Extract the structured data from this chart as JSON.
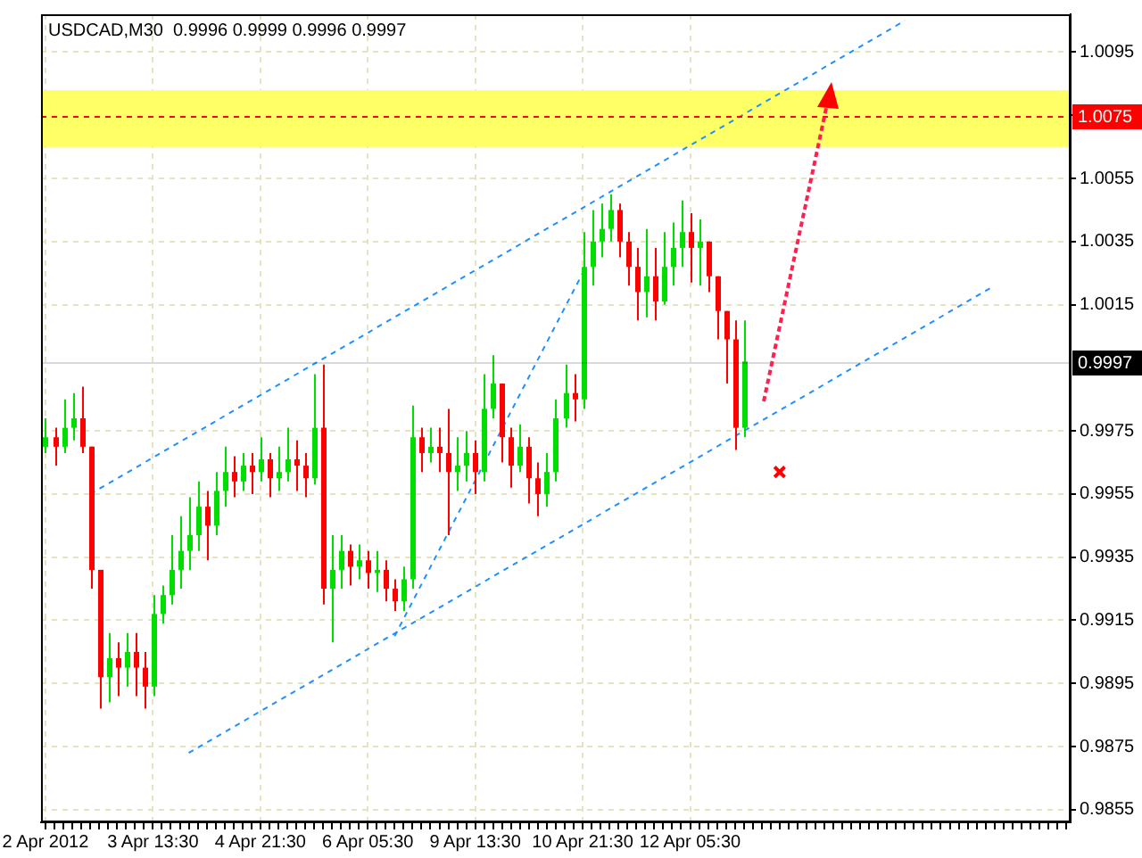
{
  "chart_data": {
    "type": "candlestick",
    "title": "USDCAD,M30  0.9996 0.9999 0.9996 0.9997",
    "categories": [
      "2 Apr 2012",
      null,
      null,
      null,
      null,
      null,
      null,
      null,
      null,
      null,
      null,
      null,
      "3 Apr 13:30",
      null,
      null,
      null,
      null,
      null,
      null,
      null,
      null,
      null,
      null,
      null,
      "4 Apr 21:30",
      null,
      null,
      null,
      null,
      null,
      null,
      null,
      null,
      null,
      null,
      null,
      "6 Apr 05:30",
      null,
      null,
      null,
      null,
      null,
      null,
      null,
      null,
      null,
      null,
      null,
      "9 Apr 13:30",
      null,
      null,
      null,
      null,
      null,
      null,
      null,
      null,
      null,
      null,
      null,
      "10 Apr 21:30",
      null,
      null,
      null,
      null,
      null,
      null,
      null,
      null,
      null,
      null,
      null,
      "12 Apr 05:30",
      null,
      null,
      null,
      null,
      null,
      null,
      null,
      null,
      null,
      null,
      null,
      null,
      null,
      null,
      null,
      null,
      null,
      null,
      null,
      null,
      null,
      null,
      null,
      null,
      null,
      null,
      null,
      null,
      null,
      null,
      null,
      null,
      null,
      null,
      null,
      null,
      null,
      null,
      null,
      null,
      null,
      null
    ],
    "ohlc": [
      [
        0.997,
        0.9979,
        0.9968,
        0.9973
      ],
      [
        0.9973,
        0.9976,
        0.9964,
        0.997
      ],
      [
        0.997,
        0.9985,
        0.9968,
        0.9976
      ],
      [
        0.9976,
        0.9987,
        0.9972,
        0.9979
      ],
      [
        0.9979,
        0.9989,
        0.9968,
        0.997
      ],
      [
        0.997,
        0.997,
        0.9925,
        0.9931
      ],
      [
        0.9931,
        0.9931,
        0.9887,
        0.9897
      ],
      [
        0.9897,
        0.9911,
        0.9889,
        0.9903
      ],
      [
        0.9903,
        0.9908,
        0.9891,
        0.99
      ],
      [
        0.99,
        0.9911,
        0.9894,
        0.9905
      ],
      [
        0.9905,
        0.9911,
        0.9891,
        0.99
      ],
      [
        0.99,
        0.9905,
        0.9887,
        0.9894
      ],
      [
        0.9894,
        0.9923,
        0.9891,
        0.9917
      ],
      [
        0.9917,
        0.9926,
        0.9914,
        0.9923
      ],
      [
        0.9923,
        0.9942,
        0.992,
        0.9931
      ],
      [
        0.9931,
        0.9948,
        0.9925,
        0.9937
      ],
      [
        0.9937,
        0.9954,
        0.9931,
        0.9942
      ],
      [
        0.9942,
        0.9959,
        0.9937,
        0.9951
      ],
      [
        0.9951,
        0.9956,
        0.9934,
        0.9945
      ],
      [
        0.9945,
        0.9962,
        0.9942,
        0.9956
      ],
      [
        0.9956,
        0.997,
        0.9951,
        0.9962
      ],
      [
        0.9962,
        0.9967,
        0.9954,
        0.9959
      ],
      [
        0.9959,
        0.9968,
        0.9956,
        0.9964
      ],
      [
        0.9964,
        0.9968,
        0.9955,
        0.9962
      ],
      [
        0.9962,
        0.9973,
        0.9959,
        0.9966
      ],
      [
        0.9966,
        0.9968,
        0.9954,
        0.996
      ],
      [
        0.996,
        0.997,
        0.9956,
        0.9962
      ],
      [
        0.9962,
        0.9976,
        0.9959,
        0.9966
      ],
      [
        0.9966,
        0.9972,
        0.9956,
        0.9964
      ],
      [
        0.9964,
        0.9968,
        0.9954,
        0.996
      ],
      [
        0.996,
        0.9993,
        0.9958,
        0.9976
      ],
      [
        0.9976,
        0.9996,
        0.992,
        0.9925
      ],
      [
        0.9925,
        0.9942,
        0.9908,
        0.9931
      ],
      [
        0.9931,
        0.9942,
        0.9925,
        0.9937
      ],
      [
        0.9937,
        0.9939,
        0.9926,
        0.9932
      ],
      [
        0.9932,
        0.9939,
        0.9928,
        0.9934
      ],
      [
        0.9934,
        0.9937,
        0.9925,
        0.993
      ],
      [
        0.993,
        0.9937,
        0.9924,
        0.9931
      ],
      [
        0.9931,
        0.9934,
        0.9921,
        0.9925
      ],
      [
        0.9925,
        0.9928,
        0.9918,
        0.9921
      ],
      [
        0.9921,
        0.9932,
        0.9918,
        0.9928
      ],
      [
        0.9928,
        0.9983,
        0.9925,
        0.9973
      ],
      [
        0.9973,
        0.9976,
        0.9962,
        0.9968
      ],
      [
        0.9968,
        0.9976,
        0.9965,
        0.997
      ],
      [
        0.997,
        0.9976,
        0.9962,
        0.9968
      ],
      [
        0.9968,
        0.9982,
        0.9942,
        0.9962
      ],
      [
        0.9962,
        0.9973,
        0.9956,
        0.9964
      ],
      [
        0.9964,
        0.9975,
        0.9959,
        0.9968
      ],
      [
        0.9968,
        0.9972,
        0.9955,
        0.9962
      ],
      [
        0.9962,
        0.9993,
        0.9959,
        0.9982
      ],
      [
        0.9982,
        0.9999,
        0.9979,
        0.999
      ],
      [
        0.999,
        0.999,
        0.9965,
        0.9973
      ],
      [
        0.9973,
        0.9976,
        0.9957,
        0.9964
      ],
      [
        0.9964,
        0.9977,
        0.9962,
        0.997
      ],
      [
        0.997,
        0.9973,
        0.9952,
        0.996
      ],
      [
        0.996,
        0.9965,
        0.9948,
        0.9955
      ],
      [
        0.9955,
        0.9968,
        0.9951,
        0.9962
      ],
      [
        0.9962,
        0.9985,
        0.9959,
        0.9979
      ],
      [
        0.9979,
        0.9996,
        0.9976,
        0.9987
      ],
      [
        0.9987,
        0.9993,
        0.9978,
        0.9985
      ],
      [
        0.9985,
        1.0038,
        0.9982,
        1.0027
      ],
      [
        1.0027,
        1.0045,
        1.0021,
        1.0035
      ],
      [
        1.0035,
        1.0047,
        1.003,
        1.0039
      ],
      [
        1.0039,
        1.005,
        1.0035,
        1.0045
      ],
      [
        1.0045,
        1.0047,
        1.003,
        1.0035
      ],
      [
        1.0035,
        1.0038,
        1.0021,
        1.0027
      ],
      [
        1.0027,
        1.0033,
        1.001,
        1.0019
      ],
      [
        1.0019,
        1.0039,
        1.0011,
        1.0024
      ],
      [
        1.0024,
        1.0033,
        1.001,
        1.0016
      ],
      [
        1.0016,
        1.0038,
        1.0015,
        1.0027
      ],
      [
        1.0027,
        1.0041,
        1.0021,
        1.0033
      ],
      [
        1.0033,
        1.0048,
        1.0027,
        1.0038
      ],
      [
        1.0038,
        1.0044,
        1.0022,
        1.0033
      ],
      [
        1.0033,
        1.0042,
        1.0021,
        1.0035
      ],
      [
        1.0035,
        1.0035,
        1.0019,
        1.0024
      ],
      [
        1.0024,
        1.0024,
        1.0004,
        1.0013
      ],
      [
        1.0013,
        1.0013,
        0.999,
        1.0004
      ],
      [
        1.0004,
        1.001,
        0.9969,
        0.9976
      ],
      [
        0.9976,
        1.001,
        0.9973,
        0.9997
      ],
      null,
      null,
      null,
      null,
      null,
      null,
      null,
      null,
      null,
      null,
      null,
      null,
      null,
      null,
      null,
      null,
      null,
      null,
      null,
      null,
      null,
      null,
      null,
      null,
      null,
      null,
      null,
      null,
      null,
      null,
      null,
      null,
      null,
      null,
      null,
      null
    ],
    "series": [
      {
        "type": "line",
        "color": "#1e90ff",
        "line_style": "dashed",
        "marker": "none",
        "values": [
          null,
          null,
          null,
          null,
          null,
          0.9955,
          null,
          null,
          null,
          null,
          null,
          null,
          null,
          null,
          null,
          null,
          null,
          null,
          null,
          null,
          null,
          null,
          null,
          null,
          null,
          null,
          null,
          null,
          null,
          null,
          null,
          null,
          null,
          null,
          null,
          null,
          null,
          null,
          null,
          null,
          null,
          null,
          null,
          null,
          null,
          null,
          null,
          null,
          null,
          null,
          null,
          null,
          null,
          null,
          null,
          null,
          null,
          null,
          null,
          null,
          null,
          null,
          null,
          null,
          null,
          null,
          null,
          null,
          null,
          null,
          null,
          null,
          null,
          null,
          null,
          null,
          null,
          null,
          null,
          null,
          null,
          null,
          null,
          null,
          null,
          null,
          null,
          null,
          null,
          null,
          null,
          null,
          null,
          null,
          null,
          null,
          1.0105,
          null,
          null,
          null,
          null,
          null,
          null,
          null,
          null,
          null,
          null,
          null,
          null,
          null,
          null,
          null,
          null,
          null,
          null
        ]
      },
      {
        "type": "line",
        "color": "#1e90ff",
        "line_style": "dashed",
        "marker": "none",
        "values": [
          null,
          null,
          null,
          null,
          null,
          null,
          null,
          null,
          null,
          null,
          null,
          null,
          null,
          null,
          null,
          null,
          0.9873,
          null,
          null,
          null,
          null,
          null,
          null,
          null,
          null,
          null,
          null,
          null,
          null,
          null,
          null,
          null,
          null,
          null,
          null,
          null,
          null,
          null,
          null,
          null,
          null,
          null,
          null,
          null,
          null,
          null,
          null,
          null,
          null,
          null,
          null,
          null,
          null,
          null,
          null,
          null,
          null,
          null,
          null,
          null,
          null,
          null,
          null,
          null,
          null,
          null,
          null,
          null,
          null,
          null,
          null,
          null,
          null,
          null,
          null,
          null,
          null,
          null,
          null,
          null,
          null,
          null,
          null,
          null,
          null,
          null,
          null,
          null,
          null,
          null,
          null,
          null,
          null,
          null,
          null,
          null,
          null,
          null,
          null,
          null,
          null,
          null,
          null,
          null,
          null,
          null,
          1.0021,
          null,
          null,
          null,
          null,
          null,
          null,
          null,
          null
        ]
      },
      {
        "type": "line",
        "color": "#1e90ff",
        "line_style": "dashed",
        "marker": "none",
        "values": [
          null,
          null,
          null,
          null,
          null,
          null,
          null,
          null,
          null,
          null,
          null,
          null,
          null,
          null,
          null,
          null,
          null,
          null,
          null,
          null,
          null,
          null,
          null,
          null,
          null,
          null,
          null,
          null,
          null,
          null,
          null,
          null,
          null,
          null,
          null,
          null,
          null,
          null,
          null,
          0.991,
          null,
          null,
          null,
          null,
          null,
          null,
          null,
          null,
          null,
          null,
          null,
          null,
          null,
          null,
          null,
          null,
          null,
          null,
          null,
          null,
          1.0025,
          null,
          null,
          null,
          null,
          null,
          null,
          null,
          null,
          null,
          null,
          null,
          null,
          null,
          null,
          null,
          null,
          null,
          null,
          null,
          null,
          null,
          null,
          null,
          null,
          null,
          null,
          null,
          null,
          null,
          null,
          null,
          null,
          null,
          null,
          null,
          null,
          null,
          null,
          null,
          null,
          null,
          null,
          null,
          null,
          null,
          null,
          null,
          null,
          null,
          null,
          null,
          null,
          null,
          null
        ]
      },
      {
        "type": "scatter",
        "color": "#ff0000",
        "marker": "cross",
        "values": [
          null,
          null,
          null,
          null,
          null,
          null,
          null,
          null,
          null,
          null,
          null,
          null,
          null,
          null,
          null,
          null,
          null,
          null,
          null,
          null,
          null,
          null,
          null,
          null,
          null,
          null,
          null,
          null,
          null,
          null,
          null,
          null,
          null,
          null,
          null,
          null,
          null,
          null,
          null,
          null,
          null,
          null,
          null,
          null,
          null,
          null,
          null,
          null,
          null,
          null,
          null,
          null,
          null,
          null,
          null,
          null,
          null,
          null,
          null,
          null,
          null,
          null,
          null,
          null,
          null,
          null,
          null,
          null,
          null,
          null,
          null,
          null,
          null,
          null,
          null,
          null,
          null,
          null,
          null,
          null,
          null,
          null,
          0.9962,
          null,
          null,
          null,
          null,
          null,
          null,
          null,
          null,
          null,
          null,
          null,
          null,
          null,
          null,
          null,
          null,
          null,
          null,
          null,
          null,
          null,
          null,
          null,
          null,
          null,
          null,
          null,
          null,
          null,
          null,
          null,
          null
        ]
      }
    ],
    "ylim": [
      0.9851,
      1.0107
    ],
    "yticks": [
      0.9855,
      0.9875,
      0.9895,
      0.9915,
      0.9935,
      0.9955,
      0.9975,
      1.0015,
      1.0035,
      1.0055,
      1.0075,
      1.0095
    ],
    "grid": true,
    "bands": [
      {
        "axis": "y",
        "from": 1.0065,
        "to": 1.0083,
        "color": "#ffff66"
      }
    ],
    "ref_lines": [
      {
        "axis": "y",
        "value": 1.0075,
        "label": "1.0075",
        "color": "#ff0000",
        "line_style": "dashed"
      },
      {
        "axis": "y",
        "value": 0.9997,
        "label": "0.9997",
        "color": "#000000",
        "line_style": "solid"
      }
    ]
  }
}
